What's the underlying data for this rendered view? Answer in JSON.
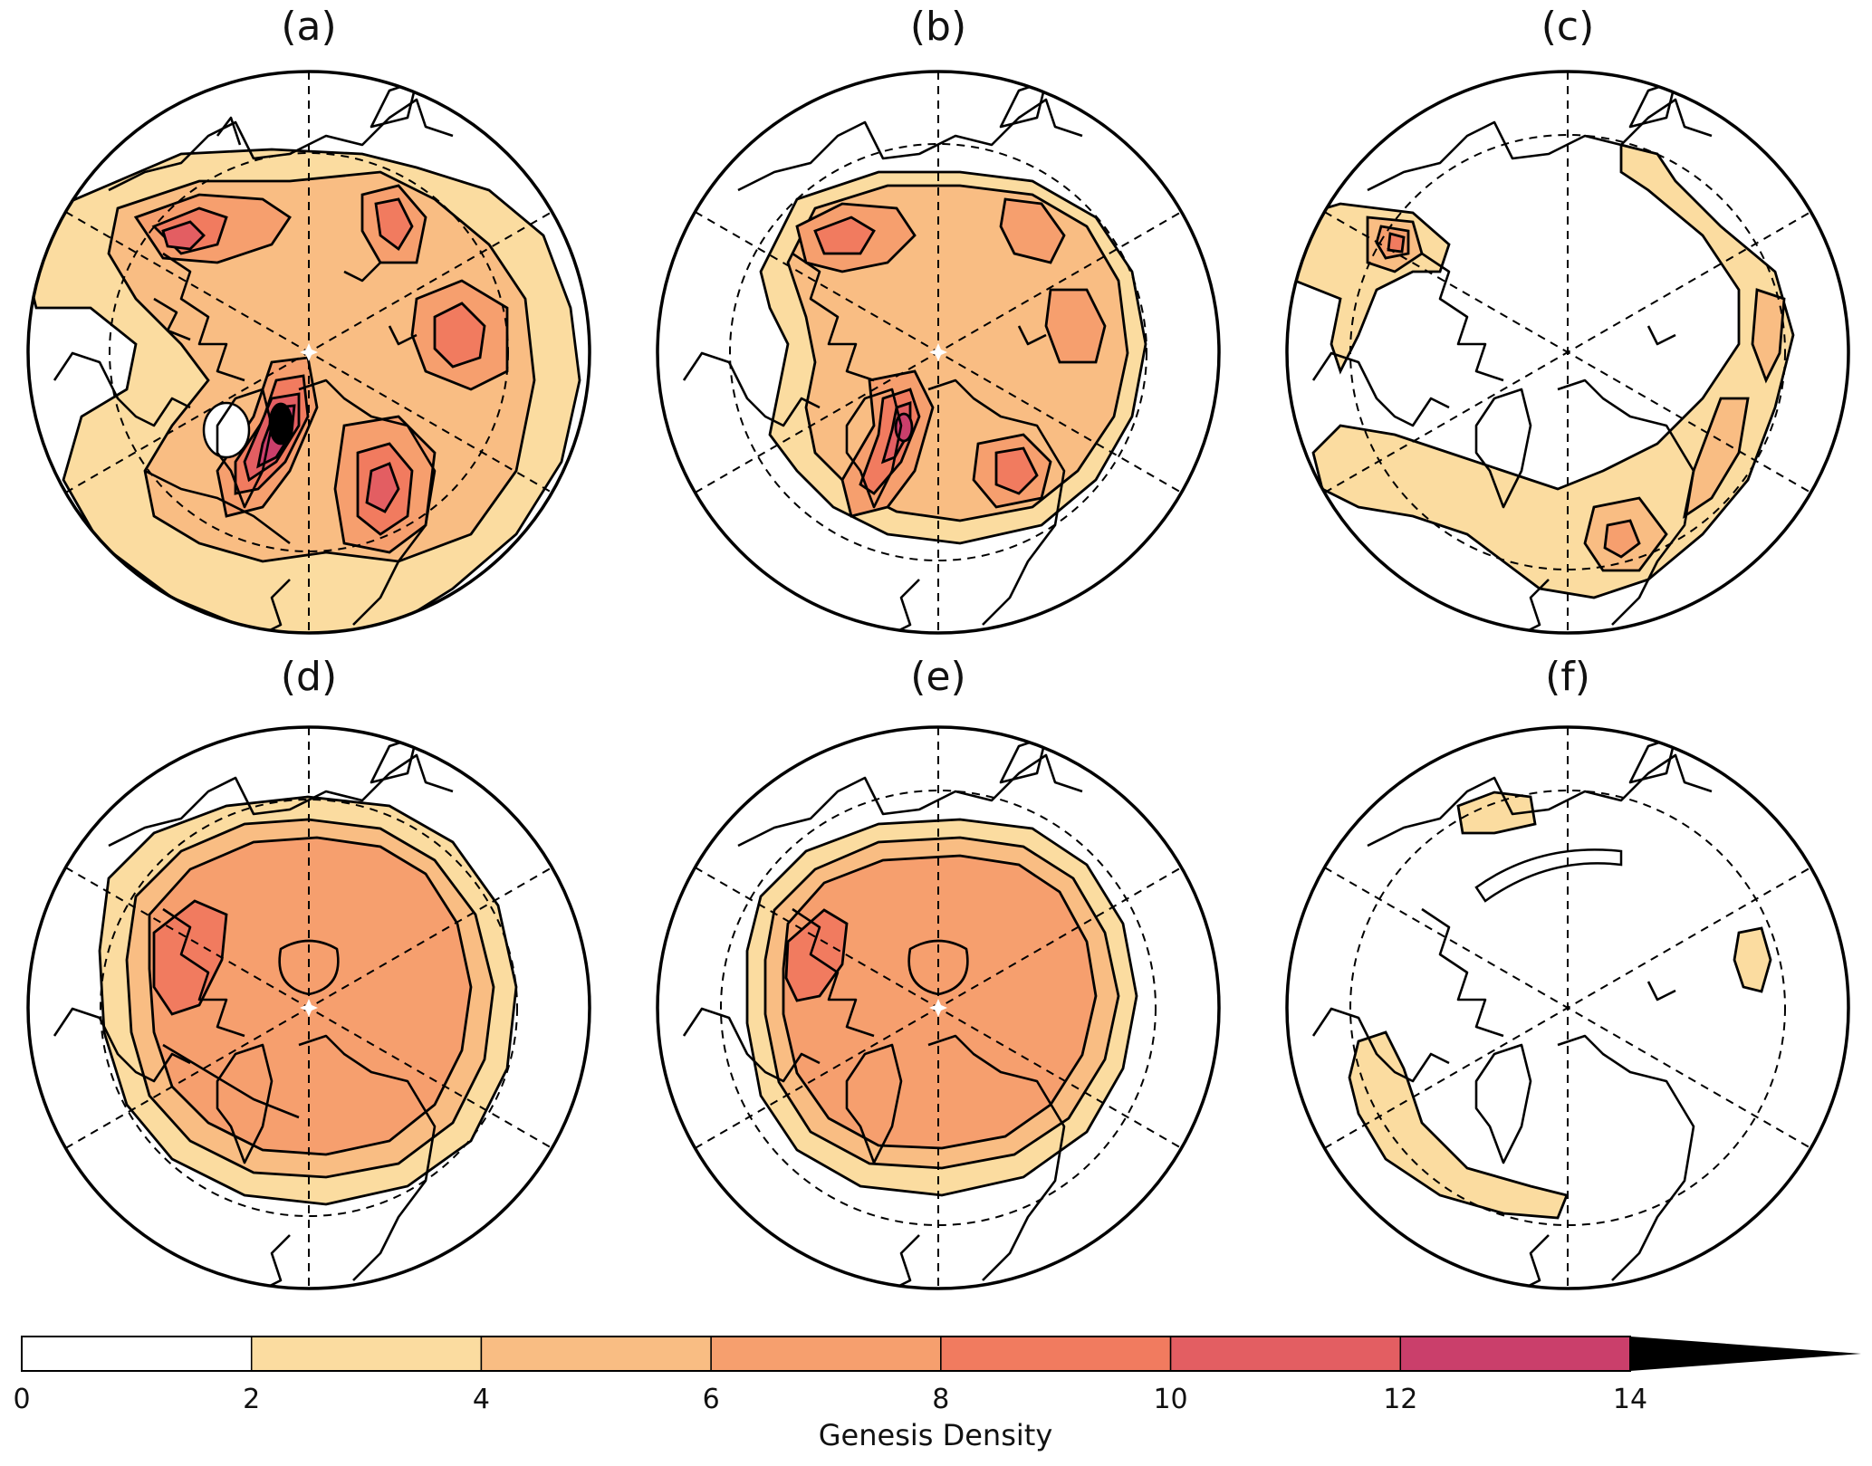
{
  "panels": [
    {
      "label": "(a)"
    },
    {
      "label": "(b)"
    },
    {
      "label": "(c)"
    },
    {
      "label": "(d)"
    },
    {
      "label": "(e)"
    },
    {
      "label": "(f)"
    }
  ],
  "colorbar": {
    "title": "Genesis Density",
    "ticks": [
      "0",
      "2",
      "4",
      "6",
      "8",
      "10",
      "12",
      "14"
    ],
    "colors": [
      "#ffffff",
      "#fbdca0",
      "#f9bd83",
      "#f69f6e",
      "#f17b5f",
      "#e35e62",
      "#ca3f6b"
    ],
    "extend_color": "#000000"
  },
  "levels": [
    {
      "fill": "#fbdca0"
    },
    {
      "fill": "#f9bd83"
    },
    {
      "fill": "#f69f6e"
    },
    {
      "fill": "#f17b5f"
    },
    {
      "fill": "#e35e62"
    },
    {
      "fill": "#ca3f6b"
    },
    {
      "fill": "#000000"
    }
  ]
}
